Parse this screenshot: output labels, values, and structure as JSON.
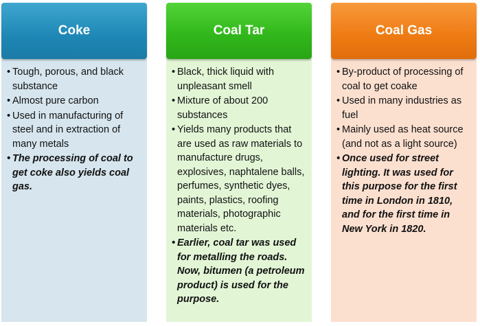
{
  "columns": [
    {
      "title": "Coke",
      "colors": {
        "header": "#1e87b5",
        "panel": "#d6e5ee"
      },
      "items": [
        "Tough, porous, and black substance",
        "Almost pure carbon",
        "Used in manufacturing of steel and in extraction of many metals"
      ],
      "note": "The processing of coal to get coke also yields coal gas."
    },
    {
      "title": "Coal Tar",
      "colors": {
        "header": "#30b61a",
        "panel": "#e2f6d6"
      },
      "items": [
        "Black, thick liquid with unpleasant smell",
        "Mixture of about 200 substances",
        "Yields many products that are used as raw materials to manufacture drugs, explosives, naphtalene balls, perfumes, synthetic dyes, paints, plastics, roofing materials, photographic materials etc."
      ],
      "note": "Earlier, coal tar was used for metalling the roads. Now, bitumen (a petroleum product) is used for the purpose."
    },
    {
      "title": "Coal Gas",
      "colors": {
        "header": "#ee7a12",
        "panel": "#fbdfcf"
      },
      "items": [
        "By-product of processing of coal to get coake",
        "Used in many industries as fuel",
        "Mainly used as heat source (and not as a light source)"
      ],
      "note": "Once used for street lighting. It was used for this purpose for the first time in London in 1810, and for the first time in New York in 1820."
    }
  ]
}
